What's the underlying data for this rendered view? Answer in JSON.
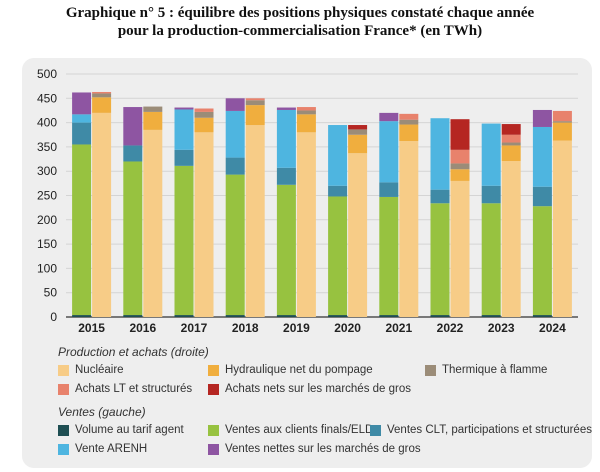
{
  "title_line1": "Graphique n° 5 : équilibre des positions physiques constaté chaque année",
  "title_line2": "pour la production-commercialisation France* (en TWh)",
  "legend": {
    "production_header": "Production et achats (droite)",
    "ventes_header": "Ventes (gauche)"
  },
  "colors": {
    "nucleaire": "#f7cc87",
    "hydraulique": "#f0ae3e",
    "thermique": "#9b8c78",
    "achats_lt": "#e8826c",
    "achats_nets": "#b52622",
    "tarif_agent": "#1e4e52",
    "clients_finals": "#97c240",
    "clt": "#3f8aa6",
    "arenh": "#4eb5e0",
    "ventes_nettes": "#8e55a2"
  },
  "chart_data": {
    "type": "bar",
    "title": "Graphique n° 5 : équilibre des positions physiques constaté chaque année pour la production-commercialisation France* (en TWh)",
    "categories": [
      "2015",
      "2016",
      "2017",
      "2018",
      "2019",
      "2020",
      "2021",
      "2022",
      "2023",
      "2024"
    ],
    "ylim": [
      0,
      500
    ],
    "yticks": [
      0,
      50,
      100,
      150,
      200,
      250,
      300,
      350,
      400,
      450,
      500
    ],
    "grid": true,
    "groups": [
      {
        "name": "Ventes (gauche)",
        "series": [
          {
            "name": "Volume au tarif agent",
            "key": "tarif_agent",
            "values": [
              4,
              4,
              4,
              4,
              4,
              4,
              4,
              4,
              4,
              4
            ]
          },
          {
            "name": "Ventes aux clients finals/ELD",
            "key": "clients_finals",
            "values": [
              351,
              316,
              307,
              289,
              268,
              244,
              243,
              230,
              230,
              224
            ]
          },
          {
            "name": "Ventes CLT, participations et structurées",
            "key": "clt",
            "values": [
              45,
              33,
              33,
              35,
              35,
              22,
              30,
              28,
              36,
              40
            ]
          },
          {
            "name": "Vente ARENH",
            "key": "arenh",
            "values": [
              17,
              0,
              83,
              96,
              119,
              125,
              126,
              147,
              128,
              123
            ]
          },
          {
            "name": "Ventes nettes sur les marchés de gros",
            "key": "ventes_nettes",
            "values": [
              45,
              79,
              4,
              26,
              5,
              0,
              17,
              0,
              0,
              35
            ]
          }
        ]
      },
      {
        "name": "Production et achats (droite)",
        "series": [
          {
            "name": "Nucléaire",
            "key": "nucleaire",
            "values": [
              420,
              385,
              380,
              395,
              380,
              337,
              362,
              280,
              321,
              363
            ]
          },
          {
            "name": "Hydraulique net du pompage",
            "key": "hydraulique",
            "values": [
              32,
              37,
              30,
              41,
              37,
              38,
              34,
              24,
              32,
              37
            ]
          },
          {
            "name": "Thermique à flamme",
            "key": "thermique",
            "values": [
              8,
              11,
              12,
              10,
              8,
              11,
              10,
              12,
              6,
              3
            ]
          },
          {
            "name": "Achats LT et structurés",
            "key": "achats_lt",
            "values": [
              3,
              0,
              7,
              4,
              7,
              0,
              12,
              28,
              16,
              21
            ]
          },
          {
            "name": "Achats nets sur les marchés de gros",
            "key": "achats_nets",
            "values": [
              0,
              0,
              0,
              0,
              0,
              9,
              0,
              63,
              22,
              0
            ]
          }
        ]
      }
    ]
  }
}
